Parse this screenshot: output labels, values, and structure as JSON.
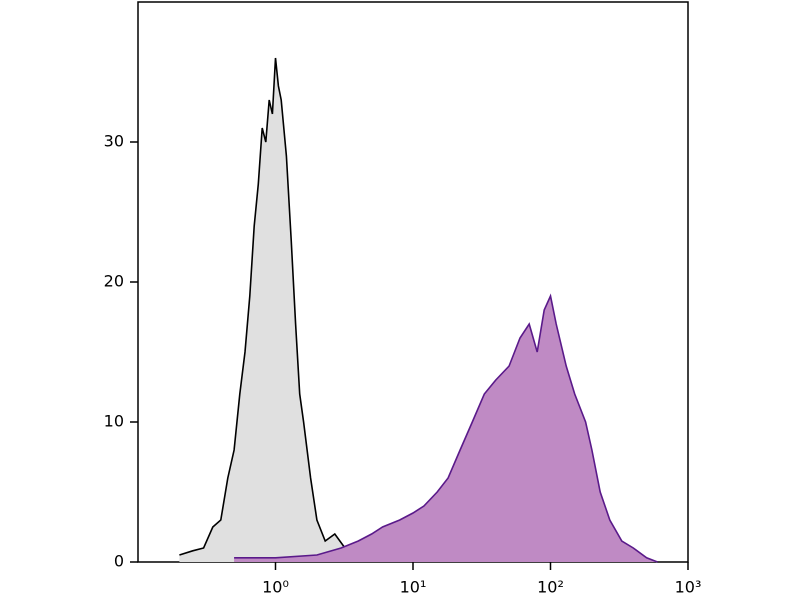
{
  "chart_data": {
    "type": "histogram-overlay",
    "xlog": true,
    "xlim": [
      0.1,
      1000
    ],
    "ylim": [
      0,
      40
    ],
    "xticks": [
      {
        "value": 1,
        "label": "10⁰"
      },
      {
        "value": 10,
        "label": "10¹"
      },
      {
        "value": 100,
        "label": "10²"
      },
      {
        "value": 1000,
        "label": "10³"
      }
    ],
    "yticks": [
      0,
      10,
      20,
      30
    ],
    "series": [
      {
        "color": "#000000",
        "fill": "#e0e0e0",
        "x": [
          0.2,
          0.25,
          0.3,
          0.35,
          0.4,
          0.45,
          0.5,
          0.55,
          0.6,
          0.65,
          0.7,
          0.75,
          0.8,
          0.85,
          0.9,
          0.95,
          1.0,
          1.05,
          1.1,
          1.2,
          1.3,
          1.4,
          1.5,
          1.6,
          1.8,
          2.0,
          2.3,
          2.7,
          3.2,
          3.6
        ],
        "values": [
          0.5,
          0.8,
          1,
          2.5,
          3,
          6,
          8,
          12,
          15,
          19,
          24,
          27,
          31,
          30,
          33,
          32,
          36,
          34,
          33,
          29,
          23,
          17,
          12,
          10,
          6,
          3,
          1.5,
          2,
          1,
          0
        ]
      },
      {
        "color": "#5a1a8a",
        "fill": "#bf8ac4",
        "x": [
          0.5,
          1,
          2,
          3,
          4,
          5,
          6,
          8,
          10,
          12,
          15,
          18,
          22,
          27,
          33,
          40,
          50,
          60,
          70,
          80,
          90,
          100,
          110,
          130,
          150,
          180,
          200,
          230,
          270,
          330,
          400,
          500,
          600
        ],
        "values": [
          0.3,
          0.3,
          0.5,
          1,
          1.5,
          2,
          2.5,
          3,
          3.5,
          4,
          5,
          6,
          8,
          10,
          12,
          13,
          14,
          16,
          17,
          15,
          18,
          19,
          17,
          14,
          12,
          10,
          8,
          5,
          3,
          1.5,
          1,
          0.3,
          0
        ]
      }
    ]
  }
}
